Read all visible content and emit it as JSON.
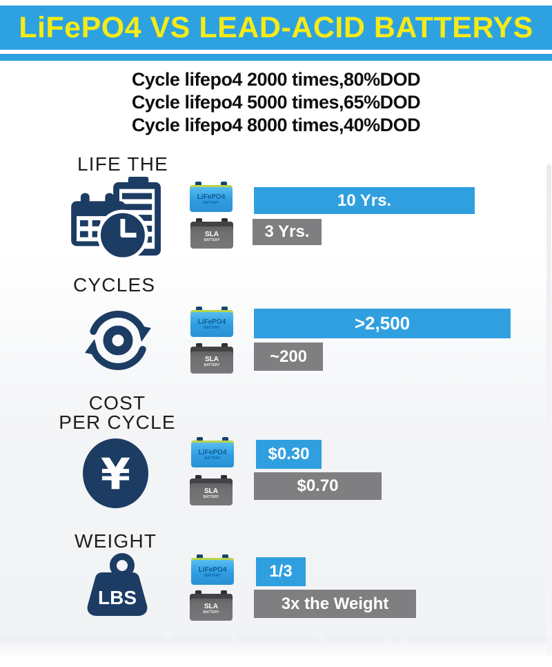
{
  "banner": {
    "title": "LiFePO4 VS LEAD-ACID BATTERYS"
  },
  "intro": {
    "line1": "Cycle lifepo4 2000 times,80%DOD",
    "line2": "Cycle lifepo4 5000 times,65%DOD",
    "line3": "Cycle lifepo4 8000 times,40%DOD"
  },
  "battery": {
    "lifepo4": {
      "name": "LiFePO4",
      "sub": "BATTERY"
    },
    "sla": {
      "name": "SLA",
      "sub": "BATTERY"
    }
  },
  "icons": {
    "lifetime": "calendar-clock-icon",
    "cycles": "rotation-arrows-icon",
    "cost": "yen-coin-icon",
    "weight": "lbs-weight-icon",
    "yen_symbol": "¥",
    "lbs_label": "LBS"
  },
  "sections": [
    {
      "title": "LIFE THE",
      "title2": "",
      "lifepo4_label": "10 Yrs.",
      "lifepo4_width": 320,
      "sla_label": "3 Yrs.",
      "sla_width": 100
    },
    {
      "title": "CYCLES",
      "title2": "",
      "lifepo4_label": ">2,500",
      "lifepo4_width": 372,
      "sla_label": "~200",
      "sla_width": 100
    },
    {
      "title": "COST",
      "title2": "PER CYCLE",
      "lifepo4_label": "$0.30",
      "lifepo4_width": 95,
      "sla_label": "$0.70",
      "sla_width": 185
    },
    {
      "title": "WEIGHT",
      "title2": "",
      "lifepo4_label": "1/3",
      "lifepo4_width": 72,
      "sla_label": "3x the Weight",
      "sla_width": 235
    }
  ],
  "colors": {
    "banner_blue": "#2ea2e1",
    "banner_yellow": "#f6eb16",
    "bar_blue": "#309fe0",
    "bar_gray": "#7f7f81",
    "icon_navy": "#1c3c63",
    "background_gray": "#f2f3f5"
  },
  "chart_data": {
    "type": "bar",
    "orientation": "horizontal",
    "title": "LiFePO4 VS LEAD-ACID BATTERYS",
    "subtitle_lines": [
      "Cycle lifepo4 2000 times,80%DOD",
      "Cycle lifepo4 5000 times,65%DOD",
      "Cycle lifepo4 8000 times,40%DOD"
    ],
    "categories": [
      "LIFE THE",
      "CYCLES",
      "COST PER CYCLE",
      "WEIGHT"
    ],
    "series": [
      {
        "name": "LiFePO4 BATTERY",
        "color": "#309fe0",
        "labels": [
          "10 Yrs.",
          ">2,500",
          "$0.30",
          "1/3"
        ],
        "values": [
          10,
          2500,
          0.3,
          0.33
        ]
      },
      {
        "name": "SLA BATTERY",
        "color": "#7f7f81",
        "labels": [
          "3 Yrs.",
          "~200",
          "$0.70",
          "3x the Weight"
        ],
        "values": [
          3,
          200,
          0.7,
          3
        ]
      }
    ],
    "legend_position": "left",
    "grid": false
  }
}
